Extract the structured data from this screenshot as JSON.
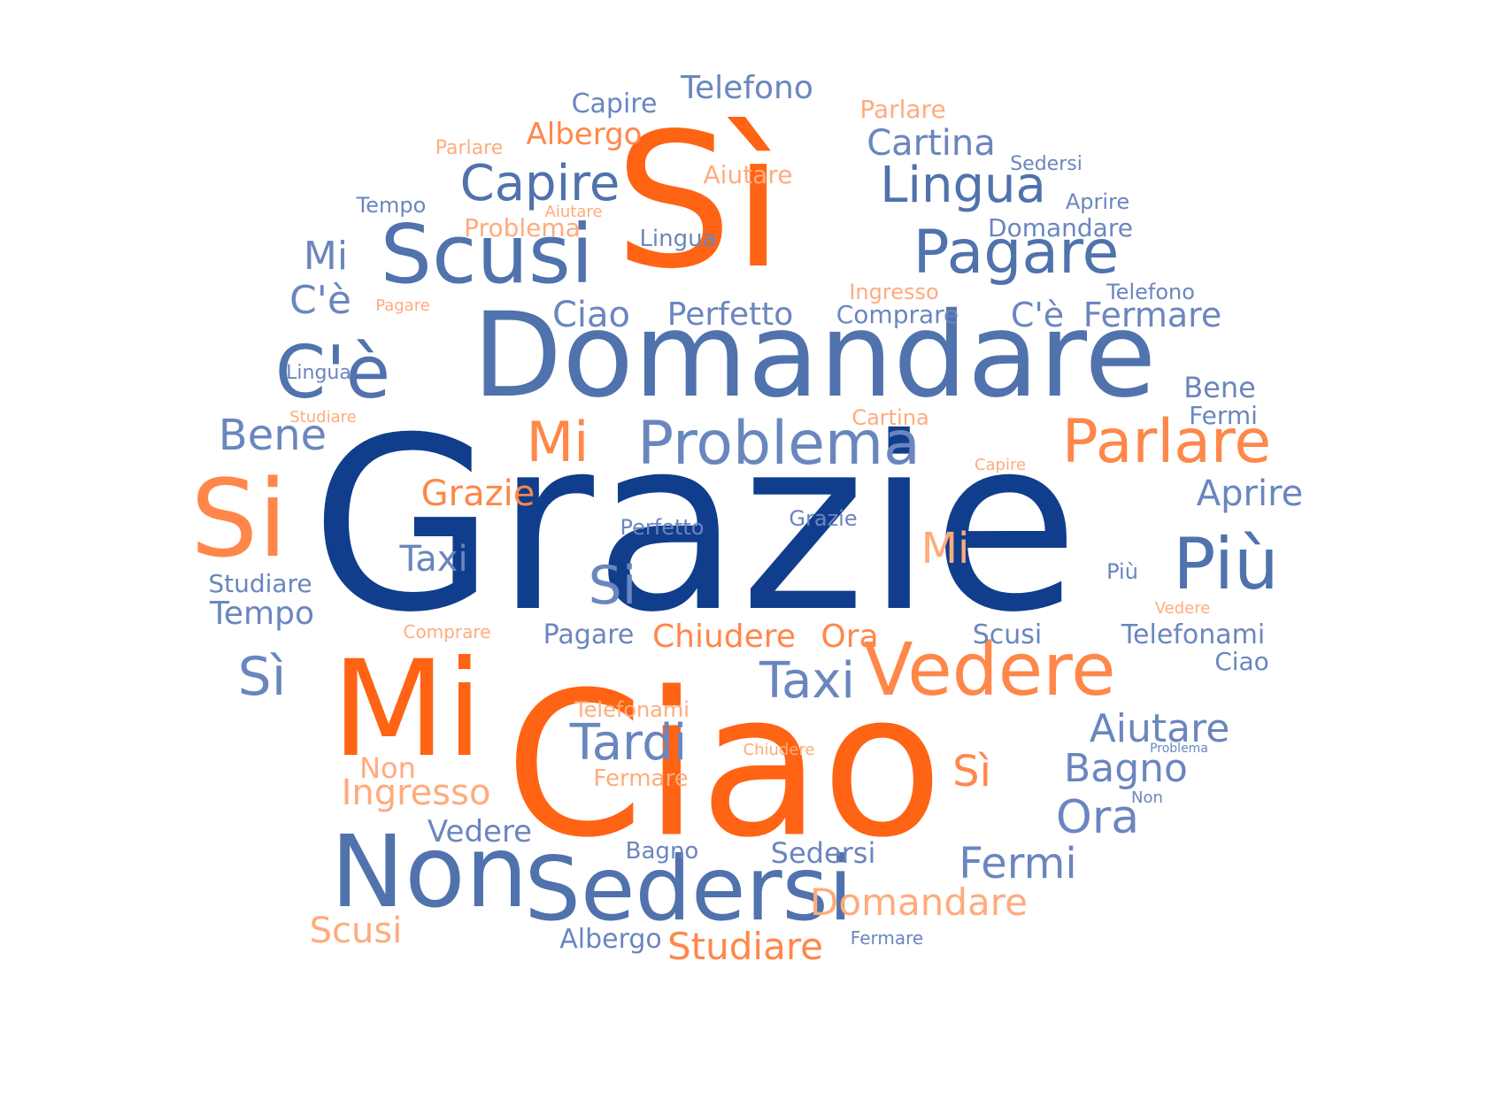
{
  "colors": {
    "navy": "#103e8c",
    "steel_blue": "#5072ad",
    "light_blue": "#6a86bf",
    "orange": "#ff6314",
    "medium_orange": "#ff874a",
    "light_orange": "#ffab7d",
    "background": "#ffffff"
  },
  "words": [
    "Grazie",
    "Ciao",
    "Domandare",
    "Sì",
    "Mi",
    "Sedersi",
    "Non",
    "Si",
    "Scusi",
    "Problema",
    "Vedere",
    "Pagare",
    "Parlare",
    "Più",
    "C'è",
    "Lingua",
    "Capire",
    "Tardi",
    "Taxi",
    "Mi",
    "Bene",
    "Si",
    "Sì",
    "Aiutare",
    "Bagno",
    "Ora",
    "Fermi",
    "Cartina",
    "Telefono",
    "Albergo",
    "Capire",
    "Parlare",
    "Ciao",
    "Perfetto",
    "Fermare",
    "C'è",
    "Mi",
    "C'è",
    "Aprire",
    "Grazie",
    "Mi",
    "Taxi",
    "Chiudere",
    "Ora",
    "Pagare",
    "Studiare",
    "Tempo",
    "Ingresso",
    "Non",
    "Scusi",
    "Studiare",
    "Vedere",
    "Sedersi",
    "Bagno",
    "Sì",
    "Telefonami",
    "Ciao",
    "Scusi",
    "Bene",
    "Fermi",
    "Aiutare",
    "Problema",
    "Domandare",
    "Comprare",
    "Perfetto",
    "Grazie",
    "Lingua",
    "Aprire",
    "Sedersi",
    "Tempo",
    "Parlare",
    "Aiutare",
    "Lingua",
    "Ingresso",
    "Telefono",
    "Pagare",
    "Studiare",
    "Cartina",
    "Capire",
    "Più",
    "Vedere",
    "Comprare",
    "Telefonami",
    "Chiudere",
    "Problema",
    "Domandare",
    "Fermare",
    "Non",
    "Fermare",
    "Albergo",
    "Tardi",
    "Studiare"
  ]
}
